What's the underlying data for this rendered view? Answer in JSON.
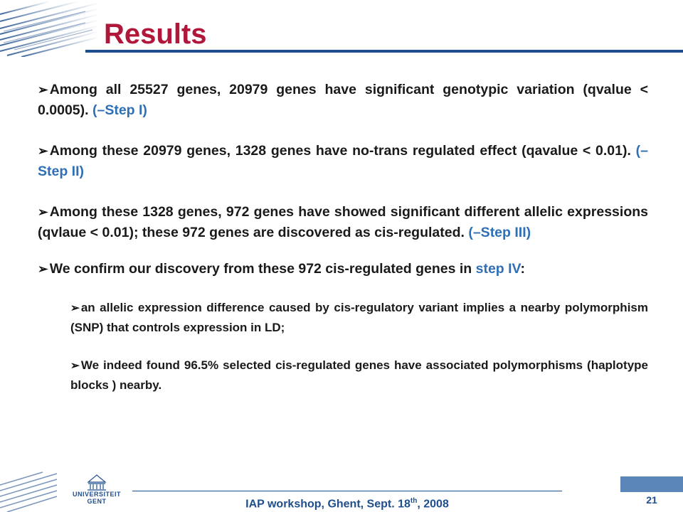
{
  "slide": {
    "title": "Results",
    "bullets": [
      {
        "text": "Among all 25527 genes, 20979 genes have significant genotypic variation (qvalue < 0.0005).",
        "step": "(–Step I)"
      },
      {
        "text": "Among these 20979 genes, 1328 genes have no-trans regulated effect (qavalue < 0.01).",
        "step": "(–Step II)"
      },
      {
        "text": "Among these 1328 genes, 972 genes have showed significant different allelic expressions (qvlaue < 0.01); these 972 genes are discovered as cis-regulated.",
        "step": "(–Step III)"
      },
      {
        "text": "We confirm our discovery from these 972 cis-regulated genes in",
        "step": "step IV",
        "suffix": ":"
      }
    ],
    "sub_bullets": [
      {
        "text": "an allelic expression difference caused by cis-regulatory variant implies a nearby polymorphism (SNP) that controls expression in LD;"
      },
      {
        "text": "We indeed found 96.5% selected cis-regulated genes have associated polymorphisms (haplotype blocks ) nearby."
      }
    ]
  },
  "footer": {
    "event": "IAP workshop, Ghent, Sept. 18",
    "event_sup": "th",
    "event_year": ", 2008",
    "page_number": "21",
    "logo_line1": "UNIVERSITEIT",
    "logo_line2": "GENT"
  },
  "colors": {
    "title": "#b0173a",
    "step": "#2f6fb5",
    "footer": "#1f4e8c",
    "page_box": "#5b86b8"
  },
  "icons": {
    "bullet": "arrow-bullet-icon",
    "logo": "university-building-icon"
  }
}
